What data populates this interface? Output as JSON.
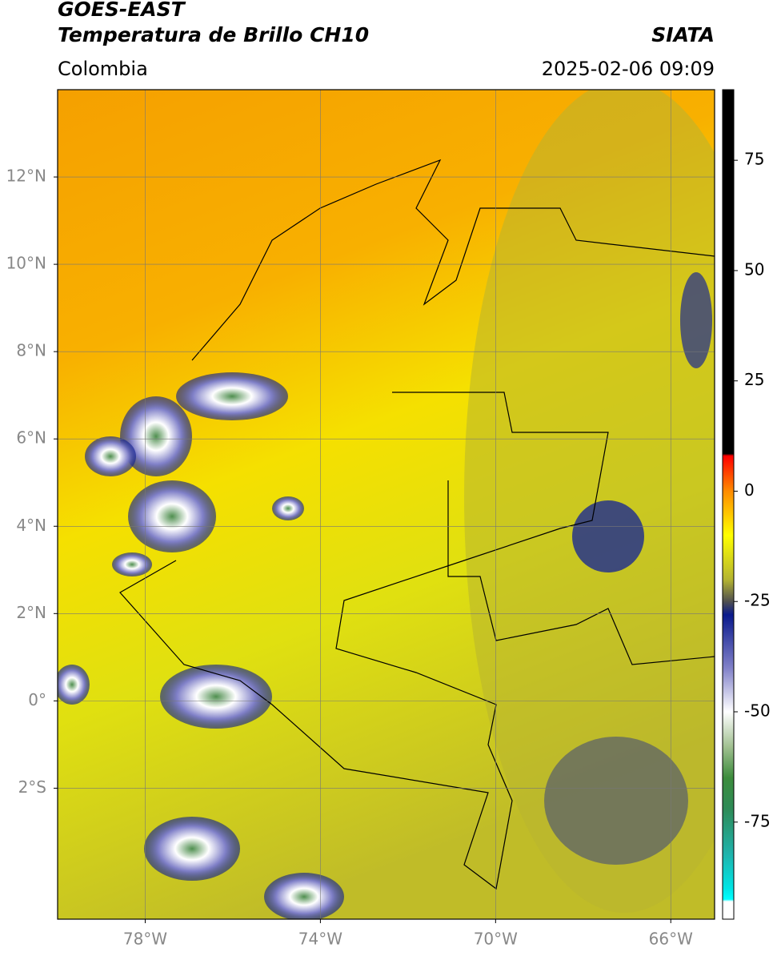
{
  "header": {
    "title": "GOES-EAST",
    "subtitle": "Temperatura de Brillo CH10",
    "source": "SIATA",
    "region": "Colombia",
    "datetime": "2025-02-06 09:09"
  },
  "map": {
    "lon_range": [
      -80,
      -65
    ],
    "lat_range": [
      -5,
      14
    ],
    "grid": true,
    "lon_ticks": [
      {
        "value": -78,
        "label": "78°W"
      },
      {
        "value": -74,
        "label": "74°W"
      },
      {
        "value": -70,
        "label": "70°W"
      },
      {
        "value": -66,
        "label": "66°W"
      }
    ],
    "lat_ticks": [
      {
        "value": 12,
        "label": "12°N"
      },
      {
        "value": 10,
        "label": "10°N"
      },
      {
        "value": 8,
        "label": "8°N"
      },
      {
        "value": 6,
        "label": "6°N"
      },
      {
        "value": 4,
        "label": "4°N"
      },
      {
        "value": 2,
        "label": "2°N"
      },
      {
        "value": 0,
        "label": "0°"
      },
      {
        "value": -2,
        "label": "2°S"
      }
    ]
  },
  "colorbar": {
    "range": [
      -97,
      91
    ],
    "ticks": [
      75,
      50,
      25,
      0,
      -25,
      -50,
      -75
    ],
    "stops": [
      {
        "value": 91,
        "color": "#000000"
      },
      {
        "value": 8.5,
        "color": "#000000"
      },
      {
        "value": 8,
        "color": "#ff0000"
      },
      {
        "value": 0,
        "color": "#ff8c00"
      },
      {
        "value": -10,
        "color": "#ffff00"
      },
      {
        "value": -20,
        "color": "#b5b530"
      },
      {
        "value": -25,
        "color": "#505050"
      },
      {
        "value": -28,
        "color": "#0a1a8c"
      },
      {
        "value": -40,
        "color": "#8080c8"
      },
      {
        "value": -50,
        "color": "#ffffff"
      },
      {
        "value": -58,
        "color": "#a0c090"
      },
      {
        "value": -65,
        "color": "#3c8c3c"
      },
      {
        "value": -72,
        "color": "#2e8b57"
      },
      {
        "value": -82,
        "color": "#20b2aa"
      },
      {
        "value": -90,
        "color": "#00e5e5"
      },
      {
        "value": -92.5,
        "color": "#00ffff"
      },
      {
        "value": -93,
        "color": "#ffffff"
      },
      {
        "value": -97,
        "color": "#ffffff"
      }
    ]
  }
}
